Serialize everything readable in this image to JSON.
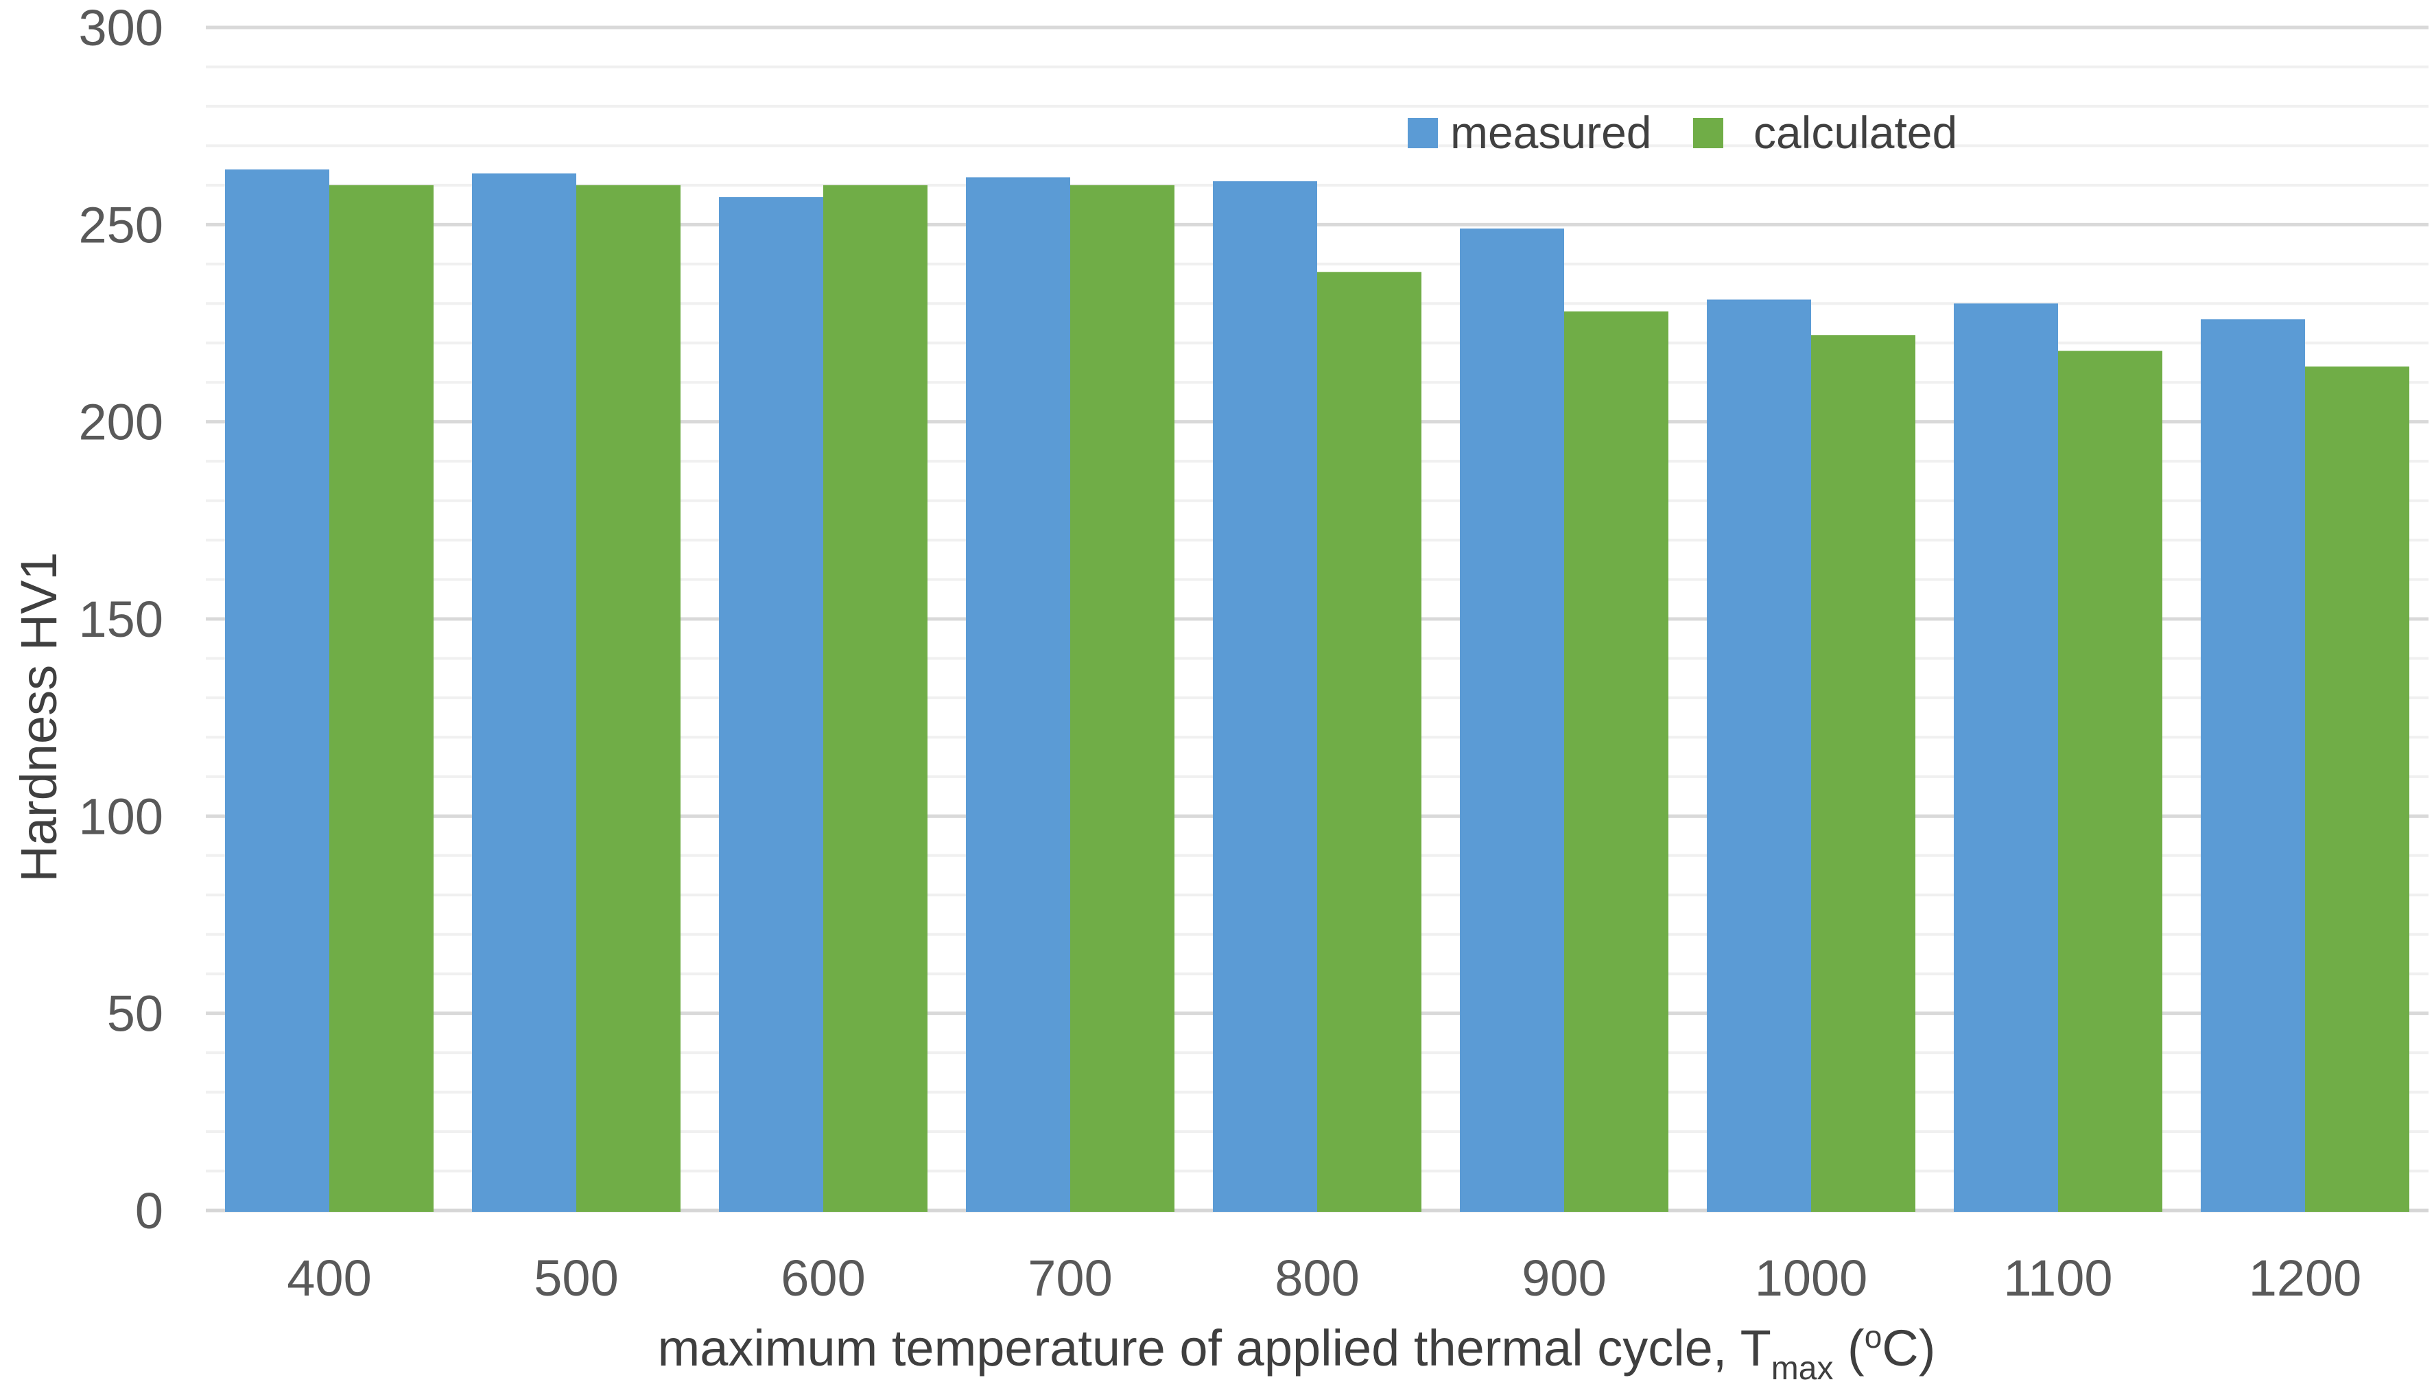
{
  "chart_data": {
    "type": "bar",
    "title": "",
    "categories": [
      "400",
      "500",
      "600",
      "700",
      "800",
      "900",
      "1000",
      "1100",
      "1200"
    ],
    "series": [
      {
        "name": "measured",
        "color": "#5B9BD5",
        "values": [
          264,
          263,
          257,
          262,
          261,
          249,
          231,
          230,
          226
        ]
      },
      {
        "name": "calculated",
        "color": "#70AD47",
        "values": [
          260,
          260,
          260,
          260,
          238,
          228,
          222,
          218,
          214
        ]
      }
    ],
    "xlabel": {
      "prefix": "maximum temperature of applied thermal cycle, T",
      "subscript": "max",
      "middle": " (",
      "superscript": "o",
      "suffix": "C)"
    },
    "ylabel": "Hardness HV1",
    "ylim": [
      0,
      300
    ],
    "ytick_major": 50,
    "ytick_minor": 10,
    "ytick_labels": [
      "0",
      "50",
      "100",
      "150",
      "200",
      "250",
      "300"
    ],
    "legend": {
      "position": "top-right",
      "entries": [
        "measured",
        "calculated"
      ]
    },
    "grid": true,
    "colors": {
      "measured": "#5B9BD5",
      "calculated": "#70AD47",
      "major_gridline": "#D9D9D9",
      "minor_gridline": "#F0F0F0",
      "axis_line": "#D6D6D6",
      "tick_label": "#595959",
      "axis_title": "#3F3F3F",
      "legend_text": "#404040",
      "background": "#FFFFFF"
    }
  }
}
